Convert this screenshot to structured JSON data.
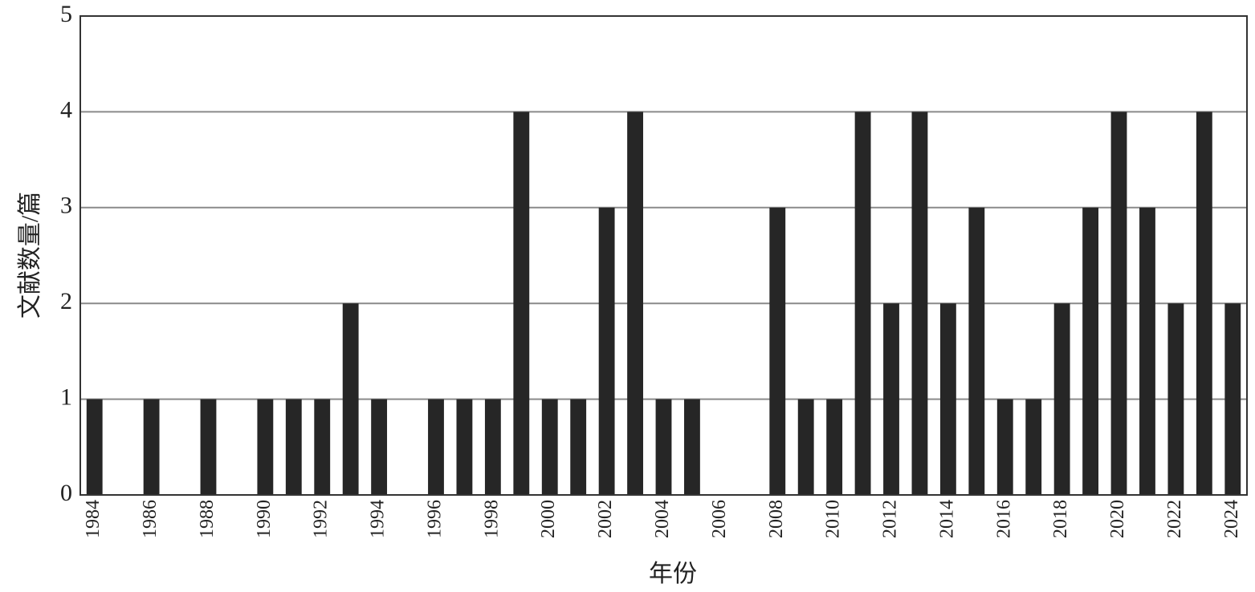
{
  "chart_data": {
    "type": "bar",
    "x_label": "年份",
    "y_label": "文献数量/篇",
    "categories": [
      "1984",
      null,
      "1986",
      null,
      "1988",
      null,
      "1990",
      null,
      "1992",
      null,
      "1994",
      null,
      "1996",
      null,
      "1998",
      null,
      "2000",
      null,
      "2002",
      null,
      "2004",
      null,
      "2006",
      null,
      "2008",
      null,
      "2010",
      null,
      "2012",
      null,
      "2014",
      null,
      "2016",
      null,
      "2018",
      null,
      "2020",
      null,
      "2022",
      null,
      "2024"
    ],
    "values": [
      1,
      0,
      1,
      0,
      1,
      0,
      1,
      1,
      1,
      2,
      1,
      0,
      1,
      1,
      1,
      4,
      1,
      1,
      3,
      4,
      1,
      1,
      0,
      0,
      3,
      1,
      1,
      4,
      2,
      4,
      2,
      3,
      1,
      1,
      2,
      3,
      4,
      3,
      2,
      4,
      2
    ],
    "color": "#262626",
    "ylim": [
      0,
      5
    ],
    "yticks": [
      0,
      1,
      2,
      3,
      4,
      5
    ],
    "grid": true
  }
}
